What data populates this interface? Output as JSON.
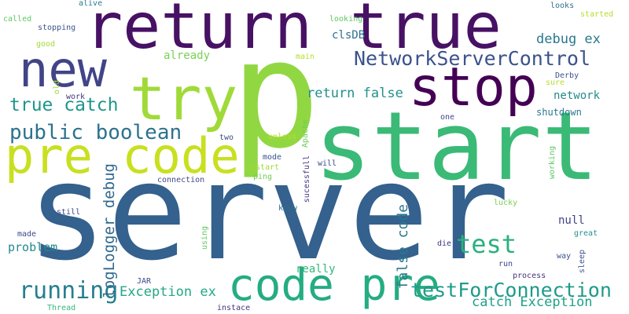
{
  "words": {
    "server": "server",
    "p": "p",
    "start": "start",
    "return_true": "return true",
    "stop": "stop",
    "new": "new",
    "try": "try",
    "pre_code": "pre code",
    "code_pre": "code pre",
    "NetworkServerControl": "NetworkServerControl",
    "testForConnection": "testForConnection",
    "test": "test",
    "running": "running",
    "public_boolean": "public boolean",
    "true_catch": "true catch",
    "debug_ex": "debug ex",
    "clsDB": "clsDB",
    "return_false": "return false",
    "network": "network",
    "shutdown": "shutdown",
    "logLogger_debug": "logLogger debug",
    "false_code": "false code",
    "Exception_ex": "Exception ex",
    "catch_Exception": "catch Exception",
    "problem": "problem",
    "null": "null",
    "really": "really",
    "already": "already",
    "alive": "alive",
    "called": "called",
    "stopping": "stopping",
    "good": "good",
    "looking": "looking",
    "looks": "looks",
    "started": "started",
    "main": "main",
    "old": "old",
    "work": "work",
    "Derby": "Derby",
    "sure": "sure",
    "one": "one",
    "Apache": "Apache",
    "two": "two",
    "unless": "unless",
    "sucessfull": "sucessfull",
    "mode": "mode",
    "will": "will",
    "restart": "restart",
    "ping": "ping",
    "connection": "connection",
    "working": "working",
    "know": "know",
    "still": "still",
    "lucky": "lucky",
    "made": "made",
    "using": "using",
    "great": "great",
    "die": "die",
    "way": "way",
    "sleep": "sleep",
    "run": "run",
    "JAR": "JAR",
    "process": "process",
    "Thread": "Thread",
    "instace": "instace"
  }
}
